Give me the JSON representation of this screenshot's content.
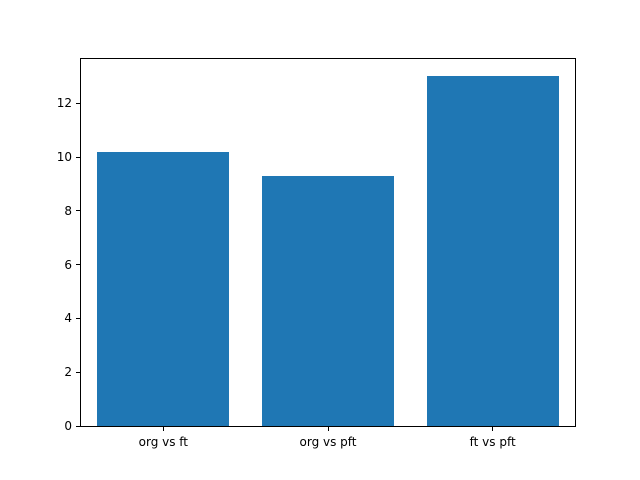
{
  "chart_data": {
    "type": "bar",
    "categories": [
      "org vs ft",
      "org vs pft",
      "ft vs pft"
    ],
    "values": [
      10.2,
      9.3,
      13.0
    ],
    "title": "",
    "xlabel": "",
    "ylabel": "",
    "ylim": [
      0,
      13.65
    ],
    "yticks": [
      0,
      2,
      4,
      6,
      8,
      10,
      12
    ],
    "bar_color": "#1f77b4",
    "bar_width_fraction": 0.8,
    "grid": false,
    "legend": false,
    "background": "#ffffff",
    "axis_color": "#000000"
  }
}
